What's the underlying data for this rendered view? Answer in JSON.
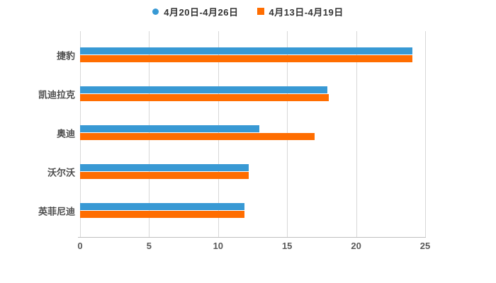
{
  "chart_data": {
    "type": "bar",
    "orientation": "horizontal",
    "title": "",
    "xlabel": "",
    "ylabel": "",
    "categories": [
      "捷豹",
      "凯迪拉克",
      "奥迪",
      "沃尔沃",
      "英菲尼迪"
    ],
    "series": [
      {
        "name": "4月20日-4月26日",
        "color": "#3899d4",
        "marker": "circle",
        "values": [
          24.1,
          17.9,
          13.0,
          12.2,
          11.9
        ]
      },
      {
        "name": "4月13日-4月19日",
        "color": "#ff6d00",
        "marker": "square",
        "values": [
          24.1,
          18.0,
          17.0,
          12.2,
          11.9
        ]
      }
    ],
    "x_ticks": [
      "0",
      "5",
      "10",
      "15",
      "20",
      "25"
    ],
    "xlim": [
      0,
      25
    ],
    "grid": true,
    "legend_position": "top"
  },
  "colors": {
    "series_blue": "#3899d4",
    "series_orange": "#ff6d00",
    "gridline": "#d8d8d8",
    "axis_line": "#c0c0c0",
    "tick_text": "#595959",
    "category_text": "#4d4d4d",
    "legend_text": "#333333",
    "background": "#ffffff"
  }
}
